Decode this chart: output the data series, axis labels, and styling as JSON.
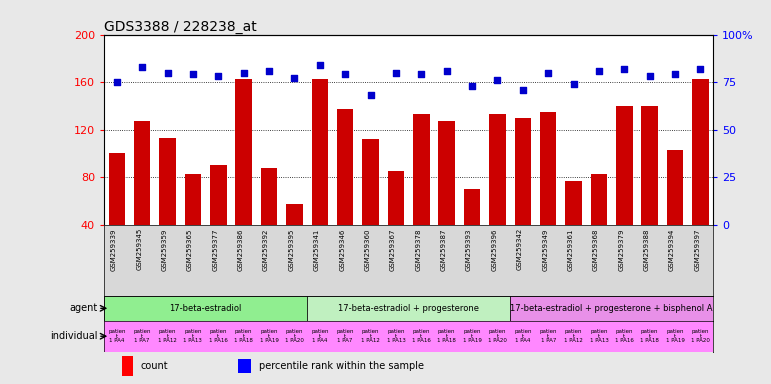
{
  "title": "GDS3388 / 228238_at",
  "gsm_labels": [
    "GSM259339",
    "GSM259345",
    "GSM259359",
    "GSM259365",
    "GSM259377",
    "GSM259386",
    "GSM259392",
    "GSM259395",
    "GSM259341",
    "GSM259346",
    "GSM259360",
    "GSM259367",
    "GSM259378",
    "GSM259387",
    "GSM259393",
    "GSM259396",
    "GSM259342",
    "GSM259349",
    "GSM259361",
    "GSM259368",
    "GSM259379",
    "GSM259388",
    "GSM259394",
    "GSM259397"
  ],
  "bar_values": [
    100,
    127,
    113,
    83,
    90,
    163,
    88,
    57,
    163,
    137,
    112,
    85,
    133,
    127,
    70,
    133,
    130,
    135,
    77,
    83,
    140,
    140,
    103,
    163
  ],
  "percentile_values": [
    75,
    83,
    80,
    79,
    78,
    80,
    81,
    77,
    84,
    79,
    68,
    80,
    79,
    81,
    73,
    76,
    71,
    80,
    74,
    81,
    82,
    78,
    79,
    82
  ],
  "bar_color": "#cc0000",
  "dot_color": "#0000cc",
  "ylim_left": [
    40,
    200
  ],
  "ylim_right": [
    0,
    100
  ],
  "yticks_left": [
    40,
    80,
    120,
    160,
    200
  ],
  "yticks_right": [
    0,
    25,
    50,
    75,
    100
  ],
  "ytick_labels_right": [
    "0",
    "25",
    "50",
    "75",
    "100%"
  ],
  "groups": [
    {
      "label": "17-beta-estradiol",
      "start": 0,
      "end": 7,
      "color": "#90ee90"
    },
    {
      "label": "17-beta-estradiol + progesterone",
      "start": 8,
      "end": 15,
      "color": "#c0f0c0"
    },
    {
      "label": "17-beta-estradiol + progesterone + bisphenol A",
      "start": 16,
      "end": 23,
      "color": "#e890e8"
    }
  ],
  "individual_color": "#ff88ff",
  "gsm_row_bg": "#d8d8d8",
  "agent_row_bg": "#f0f0f0",
  "legend_count_label": "count",
  "legend_percentile_label": "percentile rank within the sample",
  "background_color": "#e8e8e8",
  "plot_bg_color": "#ffffff"
}
